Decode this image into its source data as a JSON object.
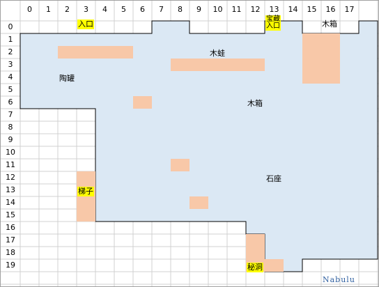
{
  "columns": [
    "0",
    "1",
    "2",
    "3",
    "4",
    "5",
    "6",
    "7",
    "8",
    "9",
    "10",
    "11",
    "12",
    "13",
    "14",
    "15",
    "16",
    "17"
  ],
  "rows": [
    "0",
    "1",
    "2",
    "3",
    "4",
    "5",
    "6",
    "7",
    "8",
    "9",
    "10",
    "11",
    "12",
    "13",
    "14",
    "15",
    "16",
    "17",
    "18",
    "19"
  ],
  "colors": {
    "grid_line": "#d0d0d0",
    "area_fill": "#dbe8f4",
    "area_border": "#000000",
    "block_fill": "#f8c8a8",
    "highlight": "#ffff00"
  },
  "labels": {
    "entrance": "入口",
    "treasure_line1": "宝藏",
    "treasure_line2": "入口",
    "crate_top": "木箱",
    "frog": "木蛙",
    "pottery": "陶罐",
    "crate_mid": "木箱",
    "stone_seat": "石座",
    "ladder": "梯子",
    "secret_cave": "秘洞"
  },
  "watermark": "Nabulu"
}
